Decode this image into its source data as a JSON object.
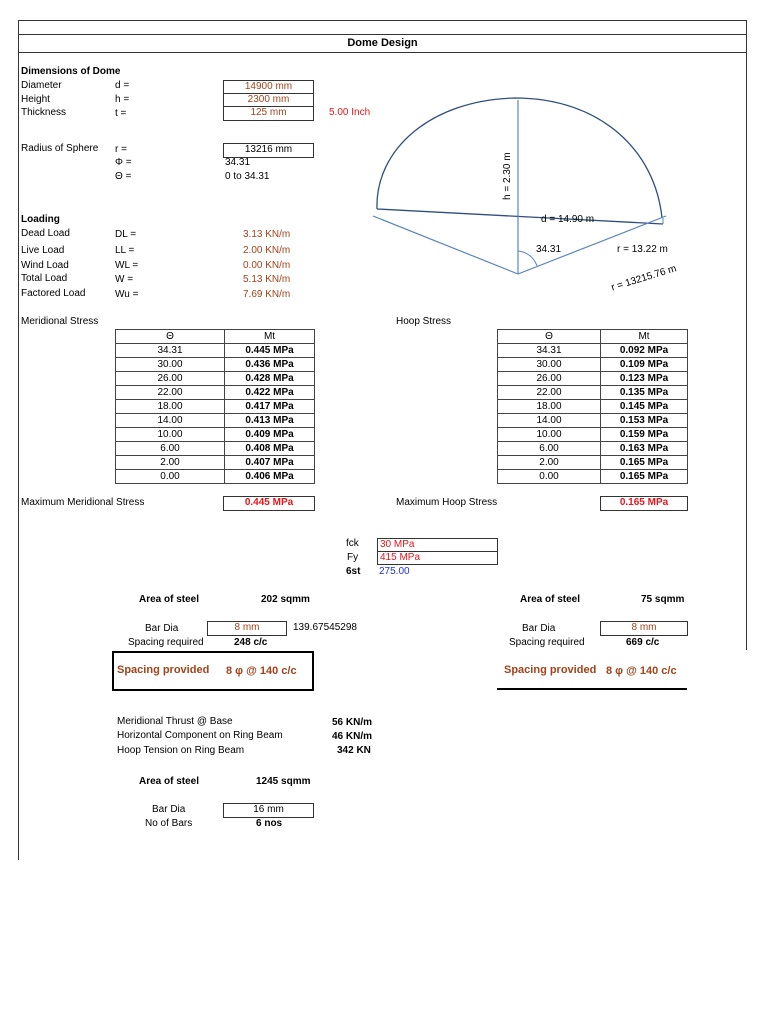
{
  "title": "Dome Design",
  "dimensions": {
    "heading": "Dimensions of Dome",
    "rows": [
      {
        "label": "Diameter",
        "sym": "d =",
        "value": "14900 mm"
      },
      {
        "label": "Height",
        "sym": "h =",
        "value": "2300 mm"
      },
      {
        "label": "Thickness",
        "sym": "t =",
        "value": "125 mm",
        "extra": "5.00  Inch"
      }
    ],
    "radius": {
      "label": "Radius of Sphere",
      "sym": "r =",
      "value": "13216 mm"
    },
    "phi": {
      "sym": "Φ =",
      "value": "34.31"
    },
    "theta": {
      "sym": "Θ =",
      "value": "0 to 34.31"
    }
  },
  "loading": {
    "heading": "Loading",
    "rows": [
      {
        "label": "Dead Load",
        "sym": "DL =",
        "value": "3.13 KN/m"
      },
      {
        "label": "Live Load",
        "sym": "LL =",
        "value": "2.00 KN/m"
      },
      {
        "label": "Wind Load",
        "sym": "WL =",
        "value": "0.00 KN/m"
      },
      {
        "label": "Total Load",
        "sym": "W =",
        "value": "5.13 KN/m"
      },
      {
        "label": "Factored Load",
        "sym": "Wu =",
        "value": "7.69 KN/m"
      }
    ]
  },
  "diagram": {
    "h_label": "h = 2.30 m",
    "d_label": "d = 14.90 m",
    "angle_label": "34.31",
    "r_label": "r = 13.22 m",
    "r_full_label": "r = 13215.76 m"
  },
  "meridional": {
    "heading": "Meridional Stress",
    "col_theta": "Θ",
    "col_mt": "Mt",
    "rows": [
      [
        "34.31",
        "0.445 MPa"
      ],
      [
        "30.00",
        "0.436 MPa"
      ],
      [
        "26.00",
        "0.428 MPa"
      ],
      [
        "22.00",
        "0.422 MPa"
      ],
      [
        "18.00",
        "0.417 MPa"
      ],
      [
        "14.00",
        "0.413 MPa"
      ],
      [
        "10.00",
        "0.409 MPa"
      ],
      [
        "6.00",
        "0.408 MPa"
      ],
      [
        "2.00",
        "0.407 MPa"
      ],
      [
        "0.00",
        "0.406 MPa"
      ]
    ],
    "max_label": "Maximum Meridional Stress",
    "max_value": "0.445 MPa"
  },
  "hoop": {
    "heading": "Hoop Stress",
    "col_theta": "Θ",
    "col_mt": "Mt",
    "rows": [
      [
        "34.31",
        "0.092 MPa"
      ],
      [
        "30.00",
        "0.109 MPa"
      ],
      [
        "26.00",
        "0.123 MPa"
      ],
      [
        "22.00",
        "0.135 MPa"
      ],
      [
        "18.00",
        "0.145 MPa"
      ],
      [
        "14.00",
        "0.153 MPa"
      ],
      [
        "10.00",
        "0.159 MPa"
      ],
      [
        "6.00",
        "0.163 MPa"
      ],
      [
        "2.00",
        "0.165 MPa"
      ],
      [
        "0.00",
        "0.165 MPa"
      ]
    ],
    "max_label": "Maximum Hoop Stress",
    "max_value": "0.165 MPa"
  },
  "materials": {
    "fck_label": "fck",
    "fck": "30 MPa",
    "fy_label": "Fy",
    "fy": "415 MPa",
    "sst_label": "6st",
    "sst": "275.00"
  },
  "steel_left": {
    "area_label": "Area of steel",
    "area": "202 sqmm",
    "bar_label": "Bar Dia",
    "bar": "8 mm",
    "aux": "139.67545298",
    "spacing_req_label": "Spacing required",
    "spacing_req": "248 c/c",
    "spacing_prov_label": "Spacing provided",
    "spacing_prov": "8 φ @ 140 c/c"
  },
  "steel_right": {
    "area_label": "Area of steel",
    "area": "75 sqmm",
    "bar_label": "Bar Dia",
    "bar": "8 mm",
    "spacing_req_label": "Spacing required",
    "spacing_req": "669 c/c",
    "spacing_prov_label": "Spacing provided",
    "spacing_prov": "8 φ @ 140 c/c"
  },
  "ring_beam": {
    "thrust_label": "Meridional Thrust @ Base",
    "thrust": "56 KN/m",
    "horiz_label": "Horizontal Component on Ring Beam",
    "horiz": "46 KN/m",
    "hoop_label": "Hoop Tension on Ring Beam",
    "hoop": "342 KN",
    "area_label": "Area of steel",
    "area": "1245 sqmm",
    "bar_label": "Bar Dia",
    "bar": "16 mm",
    "nbars_label": "No of Bars",
    "nbars": "6 nos"
  },
  "colors": {
    "input": "#a2431a",
    "highlight": "#e8151b",
    "computed": "#1f33d6",
    "diagram": "#3d6aa8"
  }
}
